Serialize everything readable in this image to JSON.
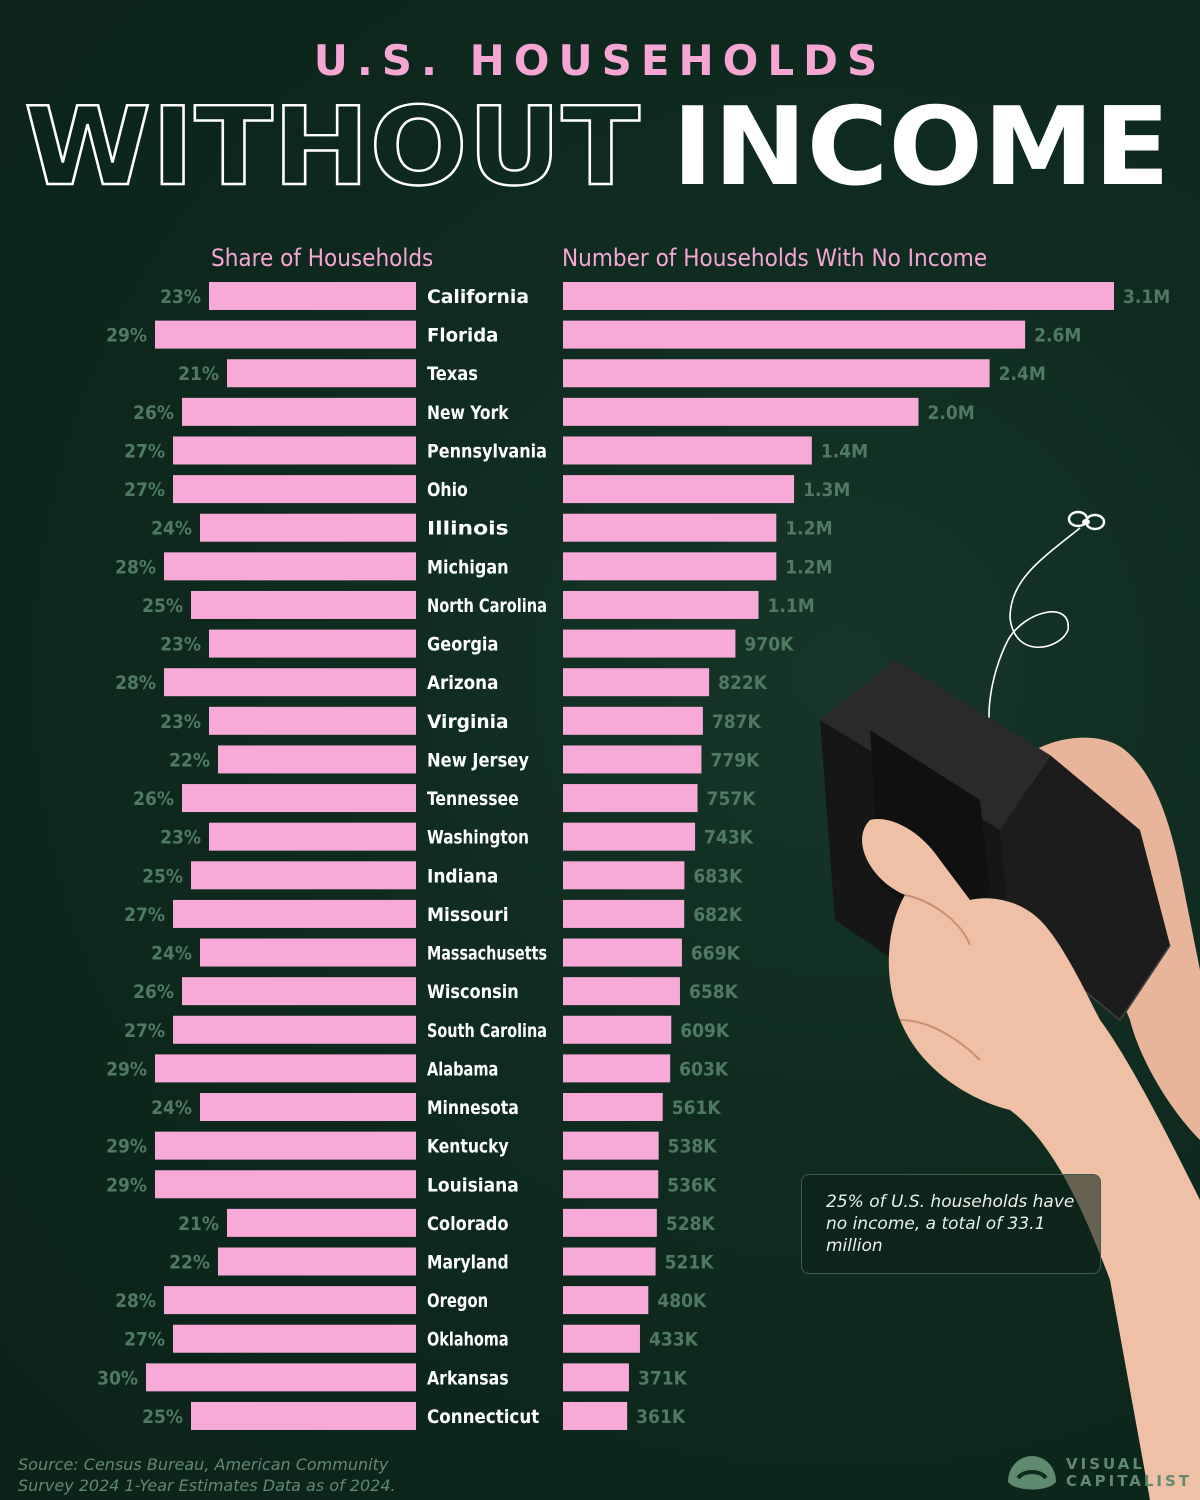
{
  "header": {
    "title_top": "U.S. HOUSEHOLDS",
    "title_outline": "WITHOUT",
    "title_solid": "INCOME"
  },
  "columns": {
    "left": "Share of Households",
    "right": "Number of Households With No Income"
  },
  "note": "25% of U.S. households have no income, a total of 33.1 million",
  "source": "Source: Census Bureau, American Community Survey 2024 1-Year Estimates Data as of 2024.",
  "brand": {
    "line1": "VISUAL",
    "line2": "CAPITALIST"
  },
  "colors": {
    "bar": "#f7aad8",
    "value_text": "#4f7a61",
    "background": "#0f2a1f",
    "accent": "#f5a6d3"
  },
  "chart_data": [
    {
      "type": "bar",
      "orientation": "horizontal",
      "title": "Share of Households",
      "categories": [
        "California",
        "Florida",
        "Texas",
        "New York",
        "Pennsylvania",
        "Ohio",
        "Illinois",
        "Michigan",
        "North Carolina",
        "Georgia",
        "Arizona",
        "Virginia",
        "New Jersey",
        "Tennessee",
        "Washington",
        "Indiana",
        "Missouri",
        "Massachusetts",
        "Wisconsin",
        "South Carolina",
        "Alabama",
        "Minnesota",
        "Kentucky",
        "Louisiana",
        "Colorado",
        "Maryland",
        "Oregon",
        "Oklahoma",
        "Arkansas",
        "Connecticut"
      ],
      "values": [
        23,
        29,
        21,
        26,
        27,
        27,
        24,
        28,
        25,
        23,
        28,
        23,
        22,
        26,
        23,
        25,
        27,
        24,
        26,
        27,
        29,
        24,
        29,
        29,
        21,
        22,
        28,
        27,
        30,
        25
      ],
      "labels": [
        "23%",
        "29%",
        "21%",
        "26%",
        "27%",
        "27%",
        "24%",
        "28%",
        "25%",
        "23%",
        "28%",
        "23%",
        "22%",
        "26%",
        "23%",
        "25%",
        "27%",
        "24%",
        "26%",
        "27%",
        "29%",
        "24%",
        "29%",
        "29%",
        "21%",
        "22%",
        "28%",
        "27%",
        "30%",
        "25%"
      ],
      "unit": "%"
    },
    {
      "type": "bar",
      "orientation": "horizontal",
      "title": "Number of Households With No Income",
      "categories": [
        "California",
        "Florida",
        "Texas",
        "New York",
        "Pennsylvania",
        "Ohio",
        "Illinois",
        "Michigan",
        "North Carolina",
        "Georgia",
        "Arizona",
        "Virginia",
        "New Jersey",
        "Tennessee",
        "Washington",
        "Indiana",
        "Missouri",
        "Massachusetts",
        "Wisconsin",
        "South Carolina",
        "Alabama",
        "Minnesota",
        "Kentucky",
        "Louisiana",
        "Colorado",
        "Maryland",
        "Oregon",
        "Oklahoma",
        "Arkansas",
        "Connecticut"
      ],
      "values": [
        3100000,
        2600000,
        2400000,
        2000000,
        1400000,
        1300000,
        1200000,
        1200000,
        1100000,
        970000,
        822000,
        787000,
        779000,
        757000,
        743000,
        683000,
        682000,
        669000,
        658000,
        609000,
        603000,
        561000,
        538000,
        536000,
        528000,
        521000,
        480000,
        433000,
        371000,
        361000
      ],
      "labels": [
        "3.1M",
        "2.6M",
        "2.4M",
        "2.0M",
        "1.4M",
        "1.3M",
        "1.2M",
        "1.2M",
        "1.1M",
        "970K",
        "822K",
        "787K",
        "779K",
        "757K",
        "743K",
        "683K",
        "682K",
        "669K",
        "658K",
        "609K",
        "603K",
        "561K",
        "538K",
        "536K",
        "528K",
        "521K",
        "480K",
        "433K",
        "371K",
        "361K"
      ]
    }
  ]
}
